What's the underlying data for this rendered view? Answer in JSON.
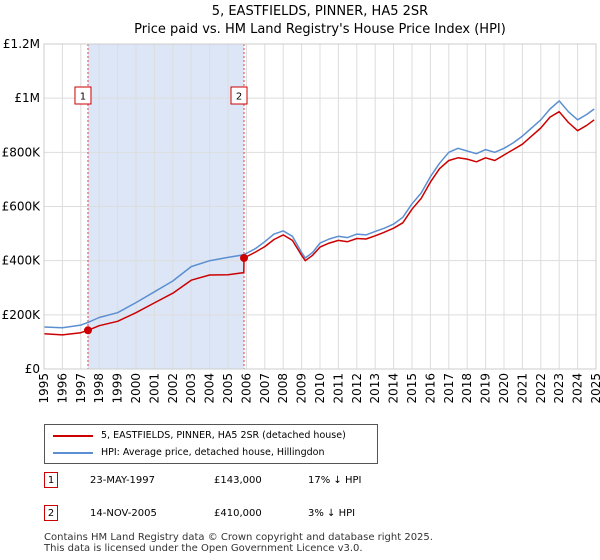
{
  "chart_data": {
    "type": "line",
    "title": "5, EASTFIELDS, PINNER, HA5 2SR",
    "subtitle": "Price paid vs. HM Land Registry's House Price Index (HPI)",
    "xlabel": "",
    "ylabel": "",
    "xlim": [
      1995,
      2025
    ],
    "ylim": [
      0,
      1200000
    ],
    "grid": true,
    "x_ticks": [
      "1995",
      "1996",
      "1997",
      "1998",
      "1999",
      "2000",
      "2001",
      "2002",
      "2003",
      "2004",
      "2005",
      "2006",
      "2007",
      "2008",
      "2009",
      "2010",
      "2011",
      "2012",
      "2013",
      "2014",
      "2015",
      "2016",
      "2017",
      "2018",
      "2019",
      "2020",
      "2021",
      "2022",
      "2023",
      "2024",
      "2025"
    ],
    "y_ticks": [
      {
        "value": 0,
        "label": "£0"
      },
      {
        "value": 200000,
        "label": "£200K"
      },
      {
        "value": 400000,
        "label": "£400K"
      },
      {
        "value": 600000,
        "label": "£600K"
      },
      {
        "value": 800000,
        "label": "£800K"
      },
      {
        "value": 1000000,
        "label": "£1M"
      },
      {
        "value": 1200000,
        "label": "£1.2M"
      }
    ],
    "shaded_span": [
      1997.39,
      2005.87
    ],
    "series": [
      {
        "name": "5, EASTFIELDS, PINNER, HA5 2SR (detached house)",
        "color": "#cc0000",
        "x": [
          1995.0,
          1996.0,
          1997.0,
          1997.39,
          1998.0,
          1999.0,
          2000.0,
          2001.0,
          2002.0,
          2003.0,
          2004.0,
          2005.0,
          2005.86,
          2005.87,
          2006.5,
          2007.0,
          2007.5,
          2008.0,
          2008.5,
          2009.0,
          2009.2,
          2009.6,
          2010.0,
          2010.5,
          2011.0,
          2011.5,
          2012.0,
          2012.5,
          2013.0,
          2013.5,
          2014.0,
          2014.5,
          2015.0,
          2015.5,
          2016.0,
          2016.5,
          2017.0,
          2017.5,
          2018.0,
          2018.5,
          2019.0,
          2019.5,
          2020.0,
          2020.5,
          2021.0,
          2021.5,
          2022.0,
          2022.5,
          2023.0,
          2023.5,
          2024.0,
          2024.5,
          2024.9
        ],
        "y": [
          130000,
          126000,
          134000,
          143000,
          160000,
          176000,
          208000,
          244000,
          280000,
          328000,
          347000,
          348000,
          356000,
          410000,
          432000,
          452000,
          478000,
          495000,
          475000,
          420000,
          400000,
          420000,
          450000,
          465000,
          475000,
          470000,
          482000,
          480000,
          492000,
          505000,
          520000,
          540000,
          590000,
          630000,
          690000,
          740000,
          770000,
          780000,
          775000,
          765000,
          780000,
          770000,
          790000,
          810000,
          830000,
          860000,
          890000,
          930000,
          950000,
          910000,
          880000,
          900000,
          920000
        ]
      },
      {
        "name": "HPI: Average price, detached house, Hillingdon",
        "color": "#5b8fd1",
        "x": [
          1995.0,
          1996.0,
          1997.0,
          1997.39,
          1998.0,
          1999.0,
          2000.0,
          2001.0,
          2002.0,
          2003.0,
          2004.0,
          2005.0,
          2005.87,
          2006.5,
          2007.0,
          2007.5,
          2008.0,
          2008.5,
          2009.0,
          2009.2,
          2009.6,
          2010.0,
          2010.5,
          2011.0,
          2011.5,
          2012.0,
          2012.5,
          2013.0,
          2013.5,
          2014.0,
          2014.5,
          2015.0,
          2015.5,
          2016.0,
          2016.5,
          2017.0,
          2017.5,
          2018.0,
          2018.5,
          2019.0,
          2019.5,
          2020.0,
          2020.5,
          2021.0,
          2021.5,
          2022.0,
          2022.5,
          2023.0,
          2023.5,
          2024.0,
          2024.5,
          2024.9
        ],
        "y": [
          155000,
          152000,
          162000,
          172000,
          190000,
          208000,
          245000,
          285000,
          325000,
          378000,
          400000,
          412000,
          422000,
          445000,
          470000,
          498000,
          510000,
          490000,
          430000,
          410000,
          430000,
          465000,
          480000,
          490000,
          485000,
          498000,
          495000,
          508000,
          520000,
          535000,
          560000,
          610000,
          650000,
          710000,
          760000,
          800000,
          815000,
          805000,
          795000,
          810000,
          800000,
          815000,
          835000,
          860000,
          890000,
          920000,
          960000,
          990000,
          950000,
          920000,
          940000,
          960000
        ]
      }
    ],
    "sales": [
      {
        "label": "1",
        "x": 1997.39,
        "y": 143000
      },
      {
        "label": "2",
        "x": 2005.87,
        "y": 410000
      }
    ]
  },
  "legend": {
    "items": [
      {
        "label": "5, EASTFIELDS, PINNER, HA5 2SR (detached house)",
        "color": "#cc0000"
      },
      {
        "label": "HPI: Average price, detached house, Hillingdon",
        "color": "#5b8fd1"
      }
    ]
  },
  "transactions": [
    {
      "num": "1",
      "date": "23-MAY-1997",
      "price": "£143,000",
      "hpi": "17% ↓ HPI"
    },
    {
      "num": "2",
      "date": "14-NOV-2005",
      "price": "£410,000",
      "hpi": "3% ↓ HPI"
    }
  ],
  "footer": {
    "line1": "Contains HM Land Registry data © Crown copyright and database right 2025.",
    "line2": "This data is licensed under the Open Government Licence v3.0."
  }
}
